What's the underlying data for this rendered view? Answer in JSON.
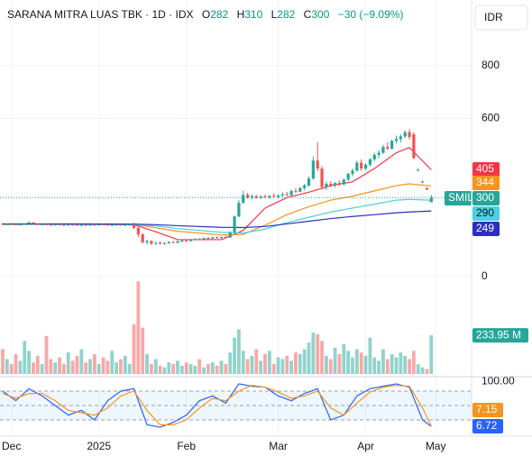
{
  "header": {
    "title": "SARANA MITRA LUAS TBK · 1D · IDX",
    "ohlc_labels": [
      "O",
      "H",
      "L",
      "C"
    ],
    "change": "−30 (−9.09%)",
    "currency": "IDR",
    "symbol": "SMIL"
  },
  "chart_data": {
    "type": "candlestick",
    "open": [
      200,
      198,
      200,
      199,
      197,
      199,
      201,
      205,
      200,
      198,
      199,
      197,
      196,
      198,
      196,
      195,
      197,
      196,
      194,
      196,
      195,
      197,
      196,
      198,
      197,
      195,
      196,
      197,
      195,
      196,
      197,
      185,
      160,
      130,
      135,
      125,
      128,
      124,
      127,
      131,
      128,
      134,
      137,
      135,
      140,
      142,
      140,
      146,
      144,
      149,
      147,
      150,
      148,
      168,
      228,
      280,
      310,
      300,
      305,
      299,
      304,
      301,
      306,
      303,
      308,
      312,
      309,
      325,
      322,
      336,
      346,
      372,
      440,
      410,
      340,
      352,
      346,
      355,
      350,
      368,
      390,
      402,
      432,
      410,
      425,
      445,
      462,
      470,
      492,
      486,
      515,
      522,
      532,
      548,
      540,
      405,
      360,
      335,
      282
    ],
    "high": [
      204,
      202,
      203,
      201,
      200,
      203,
      210,
      207,
      202,
      201,
      202,
      199,
      200,
      201,
      198,
      199,
      200,
      198,
      197,
      199,
      198,
      200,
      199,
      201,
      199,
      198,
      199,
      200,
      198,
      199,
      205,
      188,
      165,
      140,
      138,
      132,
      133,
      130,
      134,
      135,
      136,
      140,
      141,
      142,
      146,
      147,
      148,
      150,
      151,
      153,
      152,
      156,
      172,
      232,
      290,
      325,
      318,
      312,
      310,
      308,
      312,
      309,
      316,
      311,
      320,
      322,
      330,
      335,
      340,
      352,
      380,
      455,
      510,
      420,
      360,
      362,
      358,
      365,
      372,
      395,
      410,
      440,
      445,
      430,
      450,
      470,
      480,
      500,
      510,
      520,
      535,
      540,
      555,
      560,
      548,
      410,
      365,
      340,
      310
    ],
    "low": [
      196,
      195,
      197,
      196,
      194,
      197,
      199,
      199,
      196,
      195,
      196,
      193,
      194,
      195,
      192,
      193,
      194,
      193,
      191,
      193,
      192,
      194,
      193,
      195,
      194,
      192,
      194,
      194,
      193,
      193,
      180,
      150,
      125,
      122,
      120,
      120,
      122,
      120,
      124,
      126,
      126,
      130,
      132,
      133,
      136,
      138,
      139,
      141,
      142,
      144,
      143,
      146,
      147,
      165,
      225,
      275,
      295,
      292,
      296,
      294,
      298,
      295,
      300,
      297,
      302,
      305,
      306,
      318,
      320,
      328,
      340,
      368,
      400,
      330,
      328,
      340,
      338,
      345,
      346,
      362,
      380,
      398,
      400,
      404,
      418,
      438,
      450,
      465,
      480,
      482,
      505,
      510,
      525,
      520,
      445,
      400,
      355,
      328,
      282
    ],
    "close": [
      198,
      200,
      199,
      197,
      199,
      201,
      205,
      200,
      198,
      199,
      197,
      196,
      198,
      196,
      195,
      197,
      196,
      194,
      196,
      195,
      197,
      196,
      198,
      197,
      195,
      196,
      197,
      195,
      196,
      197,
      185,
      160,
      130,
      135,
      125,
      128,
      124,
      127,
      131,
      128,
      134,
      137,
      135,
      140,
      142,
      140,
      146,
      144,
      149,
      147,
      150,
      148,
      168,
      228,
      280,
      310,
      300,
      305,
      299,
      304,
      301,
      306,
      303,
      308,
      312,
      309,
      325,
      322,
      336,
      346,
      372,
      440,
      410,
      340,
      352,
      346,
      355,
      350,
      368,
      390,
      402,
      432,
      410,
      425,
      445,
      462,
      470,
      492,
      486,
      515,
      522,
      532,
      548,
      530,
      450,
      405,
      360,
      330,
      300
    ],
    "up_color": "#26a69a",
    "down_color": "#ef5350",
    "ylim": [
      -370,
      1050
    ],
    "yticks": [
      0,
      600,
      800
    ],
    "grid": true,
    "xticks": [
      {
        "value": 2,
        "label": "Dec"
      },
      {
        "value": 22,
        "label": "2025"
      },
      {
        "value": 42,
        "label": "Feb"
      },
      {
        "value": 63,
        "label": "Mar"
      },
      {
        "value": 83,
        "label": "Apr"
      },
      {
        "value": 99,
        "label": "May"
      }
    ],
    "series": [
      {
        "color": "#f23645",
        "label_text_color": "#ffffff",
        "x": [
          0,
          15,
          30,
          35,
          40,
          50,
          55,
          60,
          65,
          70,
          75,
          80,
          85,
          90,
          93,
          98
        ],
        "values": [
          199,
          198,
          197,
          170,
          140,
          140,
          175,
          260,
          300,
          320,
          345,
          360,
          410,
          470,
          490,
          405
        ]
      },
      {
        "color": "#f7941d",
        "label_text_color": "#ffffff",
        "x": [
          0,
          15,
          30,
          35,
          40,
          50,
          55,
          60,
          65,
          70,
          75,
          80,
          85,
          90,
          93,
          98
        ],
        "values": [
          197,
          198,
          198,
          185,
          172,
          158,
          160,
          195,
          235,
          265,
          290,
          305,
          325,
          345,
          352,
          344
        ]
      },
      {
        "color": "#4dd0e1",
        "label_text_color": "#131722",
        "x": [
          0,
          15,
          30,
          35,
          40,
          50,
          55,
          60,
          65,
          70,
          75,
          80,
          85,
          90,
          93,
          98
        ],
        "values": [
          198,
          198,
          198,
          192,
          182,
          168,
          165,
          180,
          205,
          225,
          245,
          260,
          275,
          290,
          293,
          290
        ]
      },
      {
        "color": "#2c2fbf",
        "label_text_color": "#ffffff",
        "x": [
          0,
          15,
          30,
          35,
          40,
          50,
          55,
          60,
          65,
          70,
          75,
          80,
          85,
          90,
          93,
          98
        ],
        "values": [
          200,
          200,
          199,
          197,
          193,
          187,
          186,
          190,
          200,
          210,
          220,
          228,
          235,
          242,
          245,
          249
        ]
      }
    ],
    "volume": {
      "ylim": [
        0,
        600
      ],
      "up_color": "#26a69a",
      "down_color": "#ef5350",
      "last_color": "#26a69a",
      "last_value_label": "233.95 M",
      "values": [
        150,
        90,
        60,
        120,
        80,
        200,
        140,
        70,
        110,
        60,
        230,
        90,
        70,
        100,
        60,
        130,
        80,
        110,
        150,
        70,
        90,
        120,
        60,
        100,
        80,
        140,
        70,
        90,
        110,
        60,
        300,
        560,
        280,
        120,
        60,
        90,
        50,
        40,
        70,
        60,
        80,
        50,
        70,
        60,
        50,
        90,
        40,
        60,
        70,
        50,
        80,
        60,
        130,
        220,
        270,
        140,
        90,
        110,
        150,
        80,
        120,
        140,
        60,
        100,
        90,
        110,
        80,
        130,
        120,
        150,
        190,
        250,
        240,
        200,
        110,
        90,
        160,
        120,
        180,
        140,
        100,
        150,
        130,
        110,
        220,
        100,
        80,
        150,
        90,
        120,
        100,
        130,
        110,
        90,
        140,
        60,
        40,
        30,
        233.95
      ]
    },
    "stochastic": {
      "ylim": [
        0,
        100
      ],
      "yticks": [
        {
          "value": 100,
          "label": "100.00"
        }
      ],
      "bands": [
        20,
        50,
        80
      ],
      "x": [
        0,
        3,
        6,
        9,
        12,
        15,
        18,
        21,
        24,
        27,
        30,
        33,
        36,
        39,
        42,
        45,
        48,
        51,
        54,
        57,
        60,
        63,
        66,
        69,
        72,
        75,
        78,
        81,
        84,
        87,
        90,
        93,
        96,
        98
      ],
      "series": [
        {
          "color": "#2962ff",
          "values": [
            80,
            60,
            85,
            70,
            50,
            30,
            40,
            20,
            60,
            80,
            85,
            10,
            5,
            15,
            30,
            60,
            70,
            55,
            95,
            90,
            88,
            70,
            60,
            75,
            85,
            20,
            30,
            70,
            85,
            90,
            95,
            88,
            20,
            6.72
          ]
        },
        {
          "color": "#f7941d",
          "values": [
            75,
            65,
            75,
            75,
            60,
            40,
            35,
            30,
            45,
            70,
            80,
            40,
            10,
            10,
            20,
            45,
            65,
            60,
            80,
            92,
            88,
            78,
            65,
            70,
            80,
            45,
            30,
            55,
            78,
            88,
            92,
            90,
            45,
            7.15
          ]
        }
      ]
    }
  }
}
